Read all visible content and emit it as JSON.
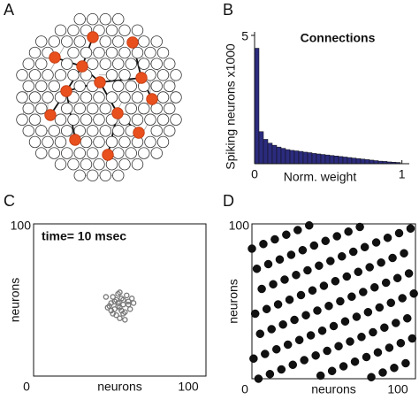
{
  "network_panel": {
    "label": "A"
  },
  "chart_data": [
    {
      "type": "histogram",
      "panel": "B",
      "title": "Connections",
      "ylabel": "Spiking neurons x1000",
      "xlabel": "Norm. weight",
      "color": "#2b2b7e",
      "bins": [
        0,
        0.03,
        0.06,
        0.09,
        0.12,
        0.15,
        0.18,
        0.21,
        0.24,
        0.27,
        0.3,
        0.33,
        0.36,
        0.39,
        0.42,
        0.45,
        0.48,
        0.51,
        0.54,
        0.57,
        0.6,
        0.63,
        0.66,
        0.69,
        0.72,
        0.75,
        0.78,
        0.81,
        0.84,
        0.87,
        0.9,
        0.93,
        0.96,
        0.99
      ],
      "values": [
        4.5,
        1.25,
        0.95,
        0.8,
        0.72,
        0.65,
        0.6,
        0.55,
        0.52,
        0.5,
        0.48,
        0.45,
        0.43,
        0.4,
        0.38,
        0.36,
        0.34,
        0.32,
        0.3,
        0.28,
        0.26,
        0.24,
        0.22,
        0.2,
        0.18,
        0.16,
        0.14,
        0.12,
        0.1,
        0.09,
        0.07,
        0.06,
        0.05
      ],
      "xlim": [
        0,
        1.05
      ],
      "ylim": [
        0,
        5
      ],
      "xticks": [
        0,
        1
      ],
      "yticks": [
        5
      ]
    },
    {
      "type": "scatter",
      "panel": "C",
      "annotation": "time= 10 msec",
      "xlabel": "neurons",
      "ylabel": "neurons",
      "filled": false,
      "color": "#777777",
      "x": [
        42,
        45,
        48,
        50,
        52,
        55,
        47,
        49,
        51,
        53,
        44,
        46,
        58,
        54,
        50,
        48,
        56,
        43,
        52,
        49,
        51,
        46,
        55,
        53,
        47,
        50,
        57,
        45,
        49,
        52
      ],
      "y": [
        52,
        48,
        50,
        55,
        47,
        49,
        44,
        46,
        51,
        42,
        46,
        41,
        48,
        53,
        38,
        40,
        44,
        45,
        50,
        48,
        43,
        52,
        47,
        37,
        49,
        45,
        51,
        43,
        54,
        41
      ],
      "xlim": [
        0,
        100
      ],
      "ylim": [
        0,
        100
      ],
      "xticks": [
        0,
        100
      ],
      "yticks": [
        100
      ]
    },
    {
      "type": "scatter",
      "panel": "D",
      "xlabel": "neurons",
      "ylabel": "neurons",
      "filled": true,
      "color": "#111111",
      "x": [
        5,
        42,
        79,
        16,
        53,
        90,
        27,
        64,
        1,
        38,
        75,
        12,
        49,
        86,
        23,
        60,
        97,
        34,
        71,
        8,
        45,
        82,
        19,
        56,
        93,
        30,
        67,
        4,
        41,
        78,
        15,
        52,
        89,
        26,
        63,
        0,
        37,
        74,
        11,
        48,
        85,
        22,
        59,
        96,
        33,
        70,
        7,
        44,
        81,
        18,
        55,
        92,
        29,
        66,
        3,
        40,
        77,
        14,
        51,
        88,
        25,
        62,
        99,
        36,
        73,
        10,
        47,
        84,
        21,
        58,
        95,
        32,
        69,
        6,
        43,
        80,
        17,
        54,
        91,
        28,
        65,
        2,
        39,
        76,
        13,
        50,
        87,
        24,
        61,
        98,
        35,
        72,
        9,
        46,
        83,
        20,
        57,
        94,
        31,
        68
      ],
      "y": [
        29,
        2,
        75,
        48,
        21,
        94,
        67,
        40,
        13,
        86,
        59,
        32,
        5,
        78,
        51,
        24,
        97,
        70,
        43,
        16,
        89,
        62,
        35,
        8,
        81,
        54,
        27,
        0,
        73,
        46,
        19,
        92,
        65,
        38,
        11,
        84,
        57,
        30,
        3,
        76,
        49,
        22,
        95,
        68,
        41,
        14,
        87,
        60,
        33,
        6,
        79,
        52,
        25,
        98,
        71,
        44,
        17,
        90,
        63,
        36,
        9,
        82,
        55,
        28,
        1,
        74,
        47,
        20,
        93,
        66,
        39,
        12,
        85,
        58,
        31,
        4,
        77,
        50,
        23,
        96,
        69,
        42,
        15,
        88,
        61,
        34,
        7,
        80,
        53,
        26,
        99,
        72,
        45,
        18,
        91,
        64,
        37,
        10,
        83,
        56
      ],
      "xlim": [
        0,
        100
      ],
      "ylim": [
        0,
        100
      ],
      "xticks": [
        0,
        100
      ],
      "yticks": [
        100
      ]
    }
  ]
}
